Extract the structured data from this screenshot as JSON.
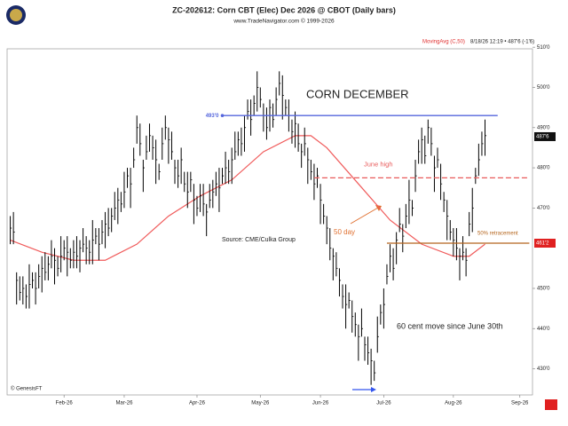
{
  "chart_data": {
    "type": "hlc",
    "title": "ZC-202612:  Corn CBT (Elec) Dec 2026 @ CBOT  (Daily bars)",
    "subtitle": "www.TradeNavigator.com © 1999-2026",
    "indicator_label": "MovingAvg (C,50)",
    "timestamp": "8/18/26 12:19 • 487'6 (-1'6)",
    "xlim": [
      -1,
      165
    ],
    "xticks": [
      {
        "value": 17,
        "label": "Feb-26"
      },
      {
        "value": 36,
        "label": "Mar-26"
      },
      {
        "value": 59,
        "label": "Apr-26"
      },
      {
        "value": 79,
        "label": "May-26"
      },
      {
        "value": 98,
        "label": "Jun-26"
      },
      {
        "value": 118,
        "label": "Jul-26"
      },
      {
        "value": 140,
        "label": "Aug-26"
      },
      {
        "value": 161,
        "label": "Sep-26"
      }
    ],
    "ylim": [
      423.5,
      509.6
    ],
    "yticks": [
      {
        "value": 430,
        "label": "430'0"
      },
      {
        "value": 440,
        "label": "440'0"
      },
      {
        "value": 450,
        "label": "450'0"
      },
      {
        "value": 470,
        "label": "470'0"
      },
      {
        "value": 480,
        "label": "480'0"
      },
      {
        "value": 490,
        "label": "490'0"
      },
      {
        "value": 500,
        "label": "500'0"
      },
      {
        "value": 510,
        "label": "510'0"
      }
    ],
    "bars": {
      "color": "#000000",
      "x": [
        0,
        1,
        2,
        3,
        4,
        5,
        6,
        7,
        8,
        9,
        10,
        11,
        12,
        13,
        14,
        15,
        16,
        17,
        18,
        19,
        20,
        21,
        22,
        23,
        24,
        25,
        26,
        27,
        28,
        29,
        30,
        31,
        32,
        33,
        34,
        35,
        36,
        37,
        38,
        39,
        40,
        41,
        42,
        43,
        44,
        45,
        46,
        47,
        48,
        49,
        50,
        51,
        52,
        53,
        54,
        55,
        56,
        57,
        58,
        59,
        60,
        61,
        62,
        63,
        64,
        65,
        66,
        67,
        68,
        69,
        70,
        71,
        72,
        73,
        74,
        75,
        76,
        77,
        78,
        79,
        80,
        81,
        82,
        83,
        84,
        85,
        86,
        87,
        88,
        89,
        90,
        91,
        92,
        93,
        94,
        95,
        96,
        97,
        98,
        99,
        100,
        101,
        102,
        103,
        104,
        105,
        106,
        107,
        108,
        109,
        110,
        111,
        112,
        113,
        114,
        115,
        116,
        117,
        118,
        119,
        120,
        121,
        122,
        123,
        124,
        125,
        126,
        127,
        128,
        129,
        130,
        131,
        132,
        133,
        134,
        135,
        136,
        137,
        138,
        139,
        140,
        141,
        142,
        143,
        144,
        145,
        146,
        147,
        148,
        149,
        150
      ],
      "high": [
        468,
        469,
        454,
        453,
        453,
        451,
        456,
        454,
        454,
        456,
        458,
        459,
        458,
        462,
        460,
        458,
        463,
        462,
        463,
        460,
        462,
        463,
        462,
        465,
        463,
        462,
        467,
        465,
        465,
        467,
        469,
        470,
        470,
        474,
        475,
        474,
        479,
        480,
        480,
        485,
        493,
        491,
        482,
        488,
        491,
        488,
        487,
        481,
        490,
        493,
        490,
        489,
        482,
        482,
        485,
        479,
        479,
        479,
        476,
        473,
        476,
        476,
        471,
        476,
        477,
        479,
        480,
        480,
        484,
        482,
        485,
        489,
        489,
        490,
        493,
        497,
        497,
        498,
        504,
        500,
        496,
        495,
        497,
        496,
        500,
        504,
        503,
        497,
        497,
        492,
        494,
        491,
        486,
        490,
        485,
        482,
        481,
        480,
        476,
        471,
        468,
        465,
        460,
        459,
        455,
        451,
        451,
        449,
        447,
        444,
        441,
        445,
        438,
        438,
        435,
        432,
        443,
        446,
        450,
        456,
        461,
        460,
        464,
        470,
        466,
        471,
        477,
        472,
        482,
        487,
        490,
        488,
        492,
        490,
        483,
        485,
        481,
        474,
        472,
        467,
        465,
        465,
        460,
        463,
        460,
        469,
        475,
        480,
        486,
        489,
        492
      ],
      "low": [
        461,
        461,
        446,
        447,
        446,
        445,
        445,
        450,
        446,
        450,
        449,
        452,
        452,
        455,
        451,
        453,
        454,
        457,
        453,
        455,
        455,
        455,
        454,
        459,
        456,
        456,
        456,
        461,
        457,
        461,
        460,
        463,
        464,
        467,
        466,
        469,
        470,
        475,
        470,
        480,
        486,
        483,
        474,
        482,
        484,
        482,
        476,
        477,
        482,
        487,
        481,
        482,
        476,
        475,
        476,
        474,
        470,
        474,
        466,
        468,
        469,
        468,
        463,
        470,
        470,
        473,
        469,
        476,
        476,
        476,
        476,
        482,
        483,
        483,
        484,
        492,
        488,
        493,
        494,
        495,
        489,
        487,
        489,
        490,
        493,
        498,
        492,
        493,
        489,
        486,
        485,
        484,
        480,
        483,
        476,
        477,
        472,
        475,
        466,
        466,
        461,
        457,
        452,
        453,
        448,
        445,
        440,
        445,
        439,
        438,
        432,
        438,
        432,
        431,
        426,
        427,
        434,
        441,
        440,
        451,
        454,
        452,
        456,
        464,
        459,
        465,
        466,
        468,
        474,
        481,
        481,
        481,
        486,
        483,
        474,
        480,
        472,
        469,
        462,
        462,
        458,
        457,
        452,
        457,
        453,
        463,
        464,
        476,
        478,
        483,
        483
      ],
      "close": [
        465,
        464,
        452,
        449,
        450,
        448,
        451,
        452,
        450,
        453,
        455,
        454,
        456,
        458,
        457,
        455,
        458,
        460,
        459,
        457,
        459,
        458,
        460,
        461,
        460,
        459,
        462,
        463,
        461,
        464,
        466,
        465,
        468,
        470,
        472,
        471,
        474,
        478,
        476,
        482,
        490,
        486,
        480,
        484,
        488,
        485,
        482,
        479,
        486,
        490,
        487,
        484,
        480,
        478,
        482,
        476,
        474,
        477,
        472,
        470,
        473,
        471,
        469,
        472,
        474,
        476,
        475,
        478,
        480,
        479,
        482,
        484,
        487,
        486,
        490,
        494,
        492,
        496,
        500,
        497,
        493,
        490,
        495,
        492,
        497,
        501,
        498,
        495,
        493,
        489,
        491,
        486,
        484,
        486,
        482,
        479,
        476,
        478,
        472,
        468,
        465,
        460,
        458,
        455,
        452,
        448,
        446,
        447,
        443,
        441,
        438,
        440,
        436,
        434,
        432,
        429,
        438,
        444,
        446,
        453,
        458,
        455,
        462,
        466,
        463,
        468,
        472,
        470,
        478,
        484,
        487,
        483,
        490,
        486,
        480,
        482,
        476,
        472,
        468,
        464,
        462,
        460,
        458,
        459,
        457,
        466,
        470,
        478,
        482,
        486,
        488
      ]
    },
    "moving_average": {
      "name": "50 day",
      "color": "#f05a5a",
      "x": [
        0,
        10,
        20,
        30,
        40,
        50,
        60,
        70,
        80,
        90,
        95,
        100,
        110,
        120,
        130,
        140,
        145,
        150
      ],
      "values": [
        462,
        459,
        457,
        457,
        461,
        468,
        473,
        477,
        484,
        488,
        488,
        485,
        476,
        467,
        461,
        458,
        458,
        461
      ]
    },
    "levels": [
      {
        "value": 493,
        "label": "493'0",
        "color": "#5566dd",
        "x": [
          67,
          154
        ]
      },
      {
        "value": 477.5,
        "label": "June high",
        "color": "#e85a5a",
        "x": [
          96,
          164
        ]
      },
      {
        "value": 461.25,
        "label": "50% retracement",
        "color": "#b5651d",
        "x": [
          119,
          164
        ]
      }
    ],
    "price_flags": [
      {
        "value": 487.75,
        "label": "487'6",
        "color": "#111111"
      },
      {
        "value": 461.25,
        "label": "461'2",
        "color": "#e02020"
      }
    ],
    "annotations": [
      "CORN DECEMBER",
      "Source: CME/Culka Group",
      "60 cent move since June 30th",
      "© GenesisFT"
    ]
  }
}
